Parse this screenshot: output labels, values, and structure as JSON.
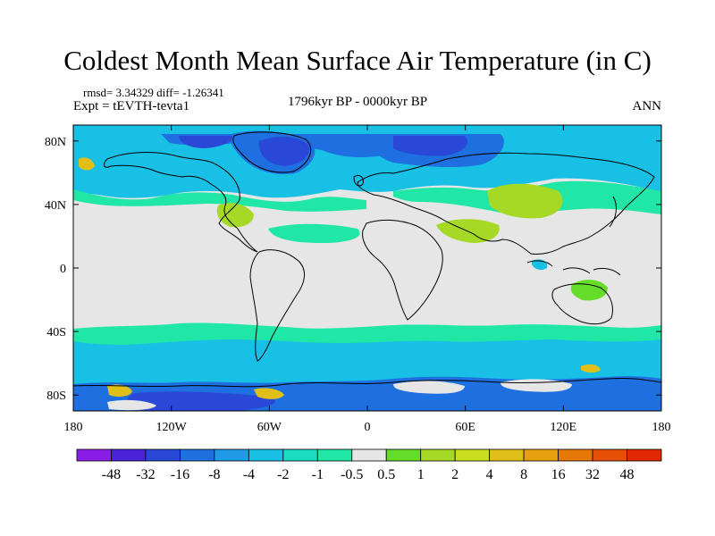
{
  "header": {
    "title": "Coldest Month Mean Surface Air Temperature (in C)",
    "stats": "rmsd= 3.34329 diff= -1.26341",
    "expt": "Expt = tEVTH-tevta1",
    "period": "1796kyr BP - 0000kyr BP",
    "season": "ANN"
  },
  "map": {
    "lat_ticks": [
      "80N",
      "40N",
      "0",
      "40S",
      "80S"
    ],
    "lat_values": [
      80,
      40,
      0,
      -40,
      -80
    ],
    "lon_ticks": [
      "180",
      "120W",
      "60W",
      "0",
      "60E",
      "120E",
      "180"
    ],
    "lon_values": [
      -180,
      -120,
      -60,
      0,
      60,
      120,
      180
    ],
    "lat_range": [
      -90,
      90
    ],
    "lon_range": [
      -180,
      180
    ],
    "background_color": "#e6e6e6"
  },
  "colorbar": {
    "labels": [
      "-48",
      "-32",
      "-16",
      "-8",
      "-4",
      "-2",
      "-1",
      "-0.5",
      "0.5",
      "1",
      "2",
      "4",
      "8",
      "16",
      "32",
      "48"
    ],
    "colors": [
      "#8a1ee6",
      "#4b22d8",
      "#2a48d8",
      "#1e6fe0",
      "#1f9ae6",
      "#19c0e6",
      "#1adcc0",
      "#20e6a6",
      "#e6e6e6",
      "#64dc28",
      "#a6d826",
      "#cade20",
      "#e0c018",
      "#e6a00e",
      "#e67808",
      "#e65006",
      "#e02a04"
    ]
  }
}
